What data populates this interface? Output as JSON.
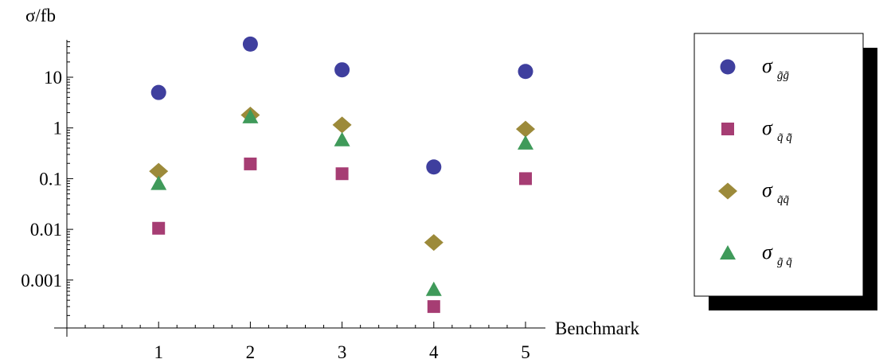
{
  "chart_data": {
    "type": "scatter",
    "title": "",
    "ylabel": "σ/fb",
    "xlabel": "Benchmark",
    "y_scale": "log",
    "ylim": [
      0.0001,
      60
    ],
    "xlim": [
      0,
      5.2
    ],
    "grid": false,
    "legend_position": "right",
    "x": [
      1,
      2,
      3,
      4,
      5
    ],
    "x_tick_labels": [
      "1",
      "2",
      "3",
      "4",
      "5"
    ],
    "y_ticks": [
      0.001,
      0.01,
      0.1,
      1,
      10
    ],
    "y_tick_labels": [
      "0.001",
      "0.01",
      "0.1",
      "1",
      "10"
    ],
    "series": [
      {
        "name": "σ g̃g̃",
        "subscript": "g̃g̃",
        "marker": "circle",
        "color": "#3f3f9e",
        "values": [
          5,
          45,
          14,
          0.17,
          13
        ]
      },
      {
        "name": "σ q̃q̃̄",
        "subscript": "q̃ q̃̄",
        "marker": "square",
        "color": "#a63d73",
        "values": [
          0.0105,
          0.195,
          0.125,
          0.0003,
          0.1
        ]
      },
      {
        "name": "σ q̃q̃",
        "subscript": "q̃q̃",
        "marker": "diamond",
        "color": "#9c8a3a",
        "values": [
          0.14,
          1.8,
          1.15,
          0.0055,
          0.95
        ]
      },
      {
        "name": "σ g̃q̃",
        "subscript": "g̃ q̃",
        "marker": "triangle",
        "color": "#3f9a5a",
        "values": [
          0.08,
          1.65,
          0.58,
          0.00065,
          0.5
        ]
      }
    ]
  }
}
